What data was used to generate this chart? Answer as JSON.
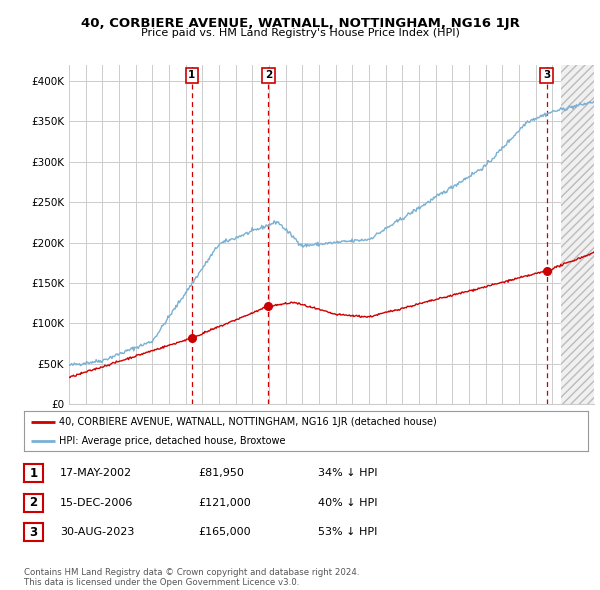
{
  "title": "40, CORBIERE AVENUE, WATNALL, NOTTINGHAM, NG16 1JR",
  "subtitle": "Price paid vs. HM Land Registry's House Price Index (HPI)",
  "ylabel_ticks": [
    "£0",
    "£50K",
    "£100K",
    "£150K",
    "£200K",
    "£250K",
    "£300K",
    "£350K",
    "£400K"
  ],
  "ytick_values": [
    0,
    50000,
    100000,
    150000,
    200000,
    250000,
    300000,
    350000,
    400000
  ],
  "ylim": [
    0,
    420000
  ],
  "xlim_start": 1995.0,
  "xlim_end": 2026.5,
  "background_color": "#ffffff",
  "grid_color": "#cccccc",
  "hpi_color": "#7ab0d4",
  "price_color": "#cc0000",
  "transactions": [
    {
      "date_num": 2002.37,
      "price": 81950,
      "label": "1"
    },
    {
      "date_num": 2006.96,
      "price": 121000,
      "label": "2"
    },
    {
      "date_num": 2023.66,
      "price": 165000,
      "label": "3"
    }
  ],
  "vline_color": "#cc0000",
  "table_rows": [
    {
      "num": "1",
      "date": "17-MAY-2002",
      "price": "£81,950",
      "hpi": "34% ↓ HPI"
    },
    {
      "num": "2",
      "date": "15-DEC-2006",
      "price": "£121,000",
      "hpi": "40% ↓ HPI"
    },
    {
      "num": "3",
      "date": "30-AUG-2023",
      "price": "£165,000",
      "hpi": "53% ↓ HPI"
    }
  ],
  "footer": "Contains HM Land Registry data © Crown copyright and database right 2024.\nThis data is licensed under the Open Government Licence v3.0.",
  "legend_price_label": "40, CORBIERE AVENUE, WATNALL, NOTTINGHAM, NG16 1JR (detached house)",
  "legend_hpi_label": "HPI: Average price, detached house, Broxtowe"
}
